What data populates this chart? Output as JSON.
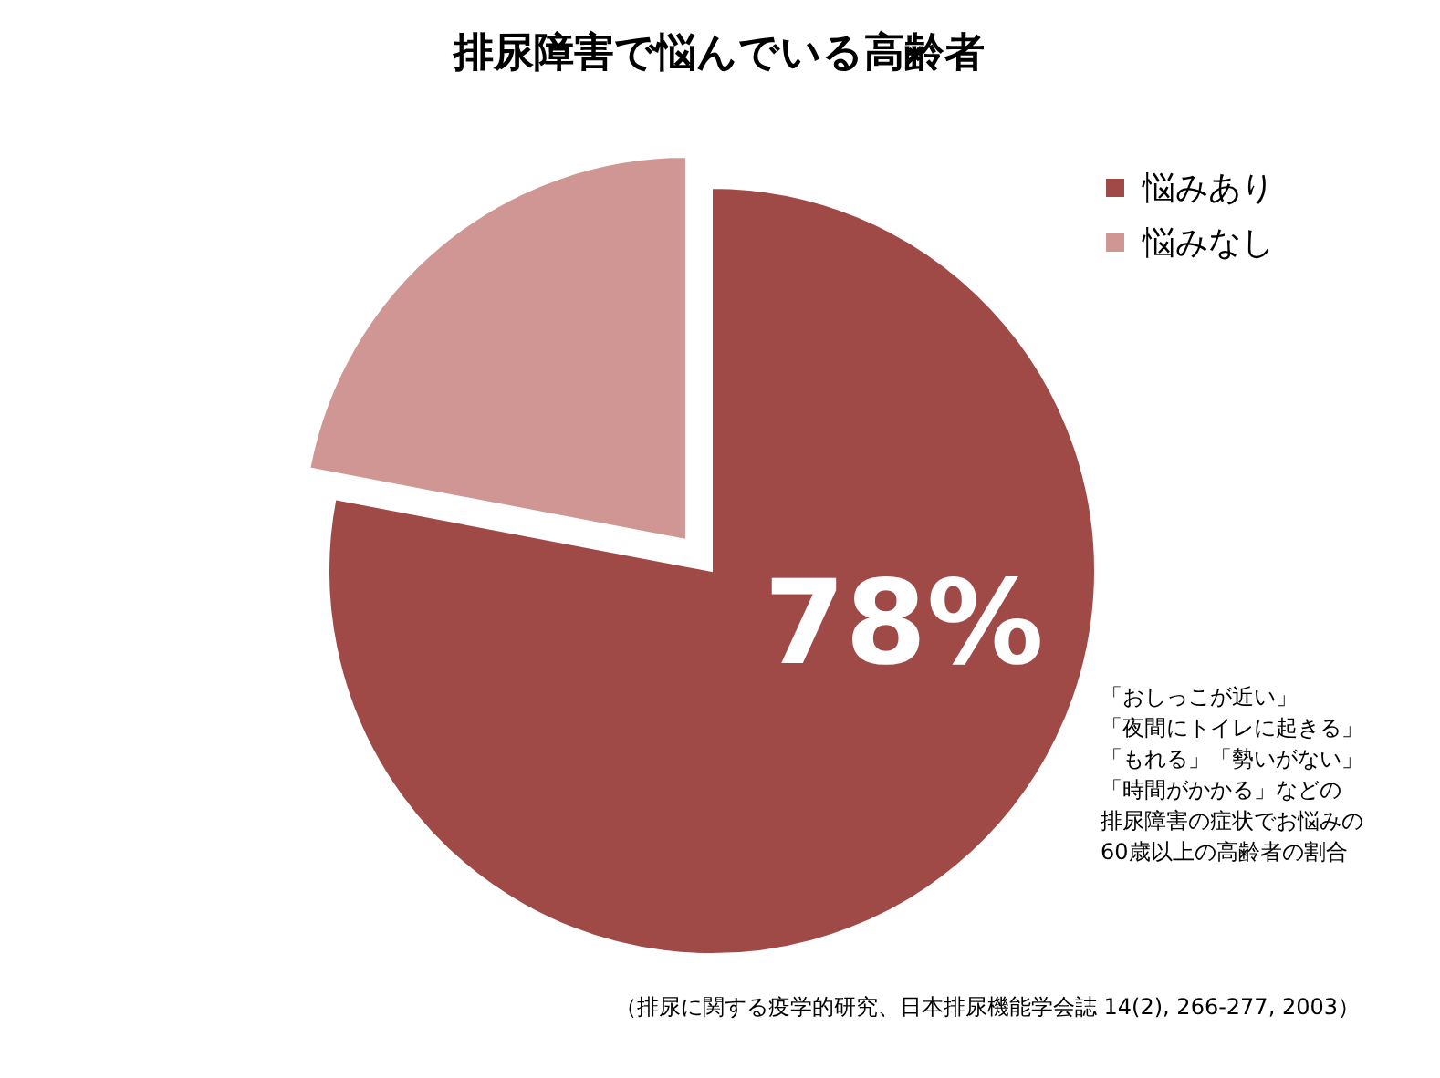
{
  "chart_data": {
    "type": "pie",
    "title": "排尿障害で悩んでいる高齢者",
    "categories": [
      "悩みあり",
      "悩みなし"
    ],
    "values": [
      78,
      22
    ],
    "colors": [
      "#a04a48",
      "#d09694"
    ],
    "value_labels": [
      "78%",
      null
    ],
    "legend": "top right",
    "annotations": [
      "「おしっこが近い」",
      "「夜間にトイレに起きる」",
      "「もれる」「勢いがない」",
      "「時間がかかる」などの",
      "排尿障害の症状でお悩みの",
      "60歳以上の高齢者の割合",
      "（排尿に関する疫学的研究、日本排尿機能学会誌 14(2), 266-277, 2003）"
    ]
  }
}
